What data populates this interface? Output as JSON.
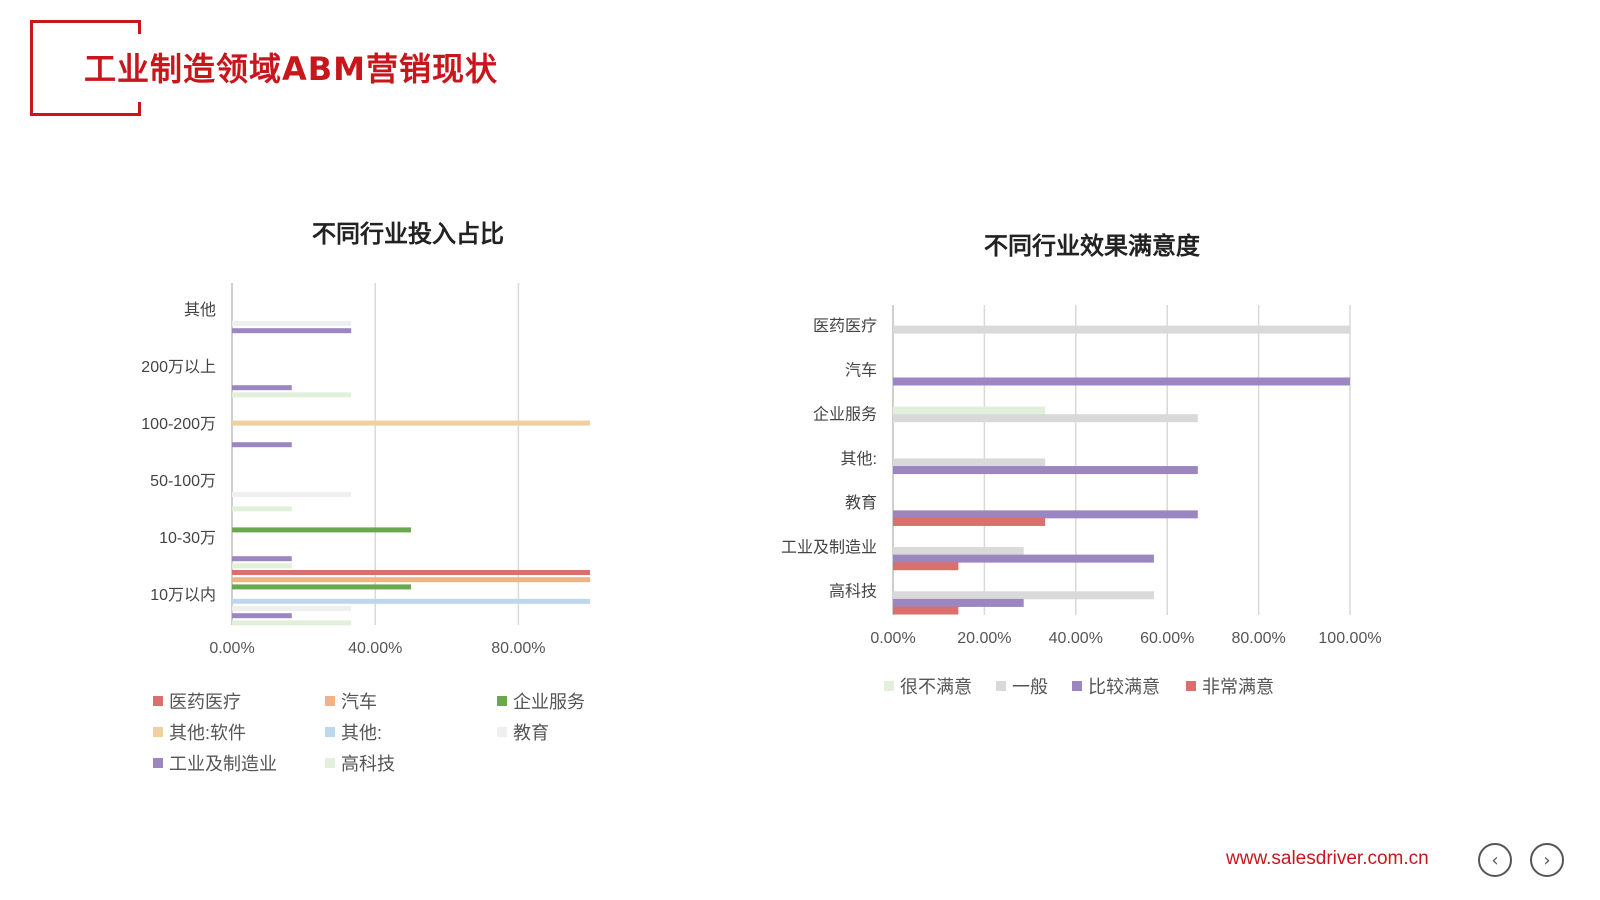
{
  "page": {
    "title": "工业制造领域ABM营销现状",
    "footer_url": "www.salesdriver.com.cn",
    "nav": {
      "prev_icon": "chevron-left-icon",
      "next_icon": "chevron-right-icon",
      "prev_glyph": "‹",
      "next_glyph": "›"
    },
    "accent_color": "#c8161d"
  },
  "chart_data": [
    {
      "type": "bar",
      "orientation": "horizontal",
      "title": "不同行业投入占比",
      "categories": [
        "其他",
        "200万以上",
        "100-200万",
        "50-100万",
        "10-30万",
        "10万以内"
      ],
      "x_ticks": [
        "0.00%",
        "40.00%",
        "80.00%"
      ],
      "xlim": [
        0,
        100
      ],
      "grid": true,
      "legend_position": "bottom",
      "series": [
        {
          "name": "医药医疗",
          "color": "#d9706e",
          "values": [
            0,
            0,
            0,
            0,
            0,
            100
          ]
        },
        {
          "name": "汽车",
          "color": "#f4b183",
          "values": [
            0,
            0,
            0,
            0,
            0,
            100
          ]
        },
        {
          "name": "企业服务",
          "color": "#6aa84f",
          "values": [
            0,
            0,
            0,
            0,
            50,
            50
          ]
        },
        {
          "name": "其他:软件",
          "color": "#f0cfa0",
          "values": [
            0,
            0,
            100,
            0,
            0,
            0
          ]
        },
        {
          "name": "其他:",
          "color": "#bdd7ee",
          "values": [
            0,
            0,
            0,
            0,
            0,
            100
          ]
        },
        {
          "name": "教育",
          "color": "#efefef",
          "values": [
            33.3,
            0,
            0,
            33.3,
            0,
            33.3
          ]
        },
        {
          "name": "工业及制造业",
          "color": "#9b86c2",
          "values": [
            33.3,
            16.7,
            16.7,
            0,
            16.7,
            16.7
          ]
        },
        {
          "name": "高科技",
          "color": "#e2efda",
          "values": [
            0,
            33.3,
            0,
            16.7,
            16.7,
            33.3
          ]
        }
      ]
    },
    {
      "type": "bar",
      "orientation": "horizontal",
      "title": "不同行业效果满意度",
      "categories": [
        "医药医疗",
        "汽车",
        "企业服务",
        "其他:",
        "教育",
        "工业及制造业",
        "高科技"
      ],
      "x_ticks": [
        "0.00%",
        "20.00%",
        "40.00%",
        "60.00%",
        "80.00%",
        "100.00%"
      ],
      "xlim": [
        0,
        100
      ],
      "grid": true,
      "legend_position": "bottom",
      "series": [
        {
          "name": "很不满意",
          "color": "#e2efda",
          "values": [
            0,
            0,
            33.3,
            0,
            0,
            0,
            0
          ]
        },
        {
          "name": "一般",
          "color": "#d9d9d9",
          "values": [
            100,
            0,
            66.7,
            33.3,
            0,
            28.6,
            57.1
          ]
        },
        {
          "name": "比较满意",
          "color": "#9b86c2",
          "values": [
            0,
            100,
            0,
            66.7,
            66.7,
            57.1,
            28.6
          ]
        },
        {
          "name": "非常满意",
          "color": "#d9706e",
          "values": [
            0,
            0,
            0,
            0,
            33.3,
            14.3,
            14.3
          ]
        }
      ]
    }
  ]
}
